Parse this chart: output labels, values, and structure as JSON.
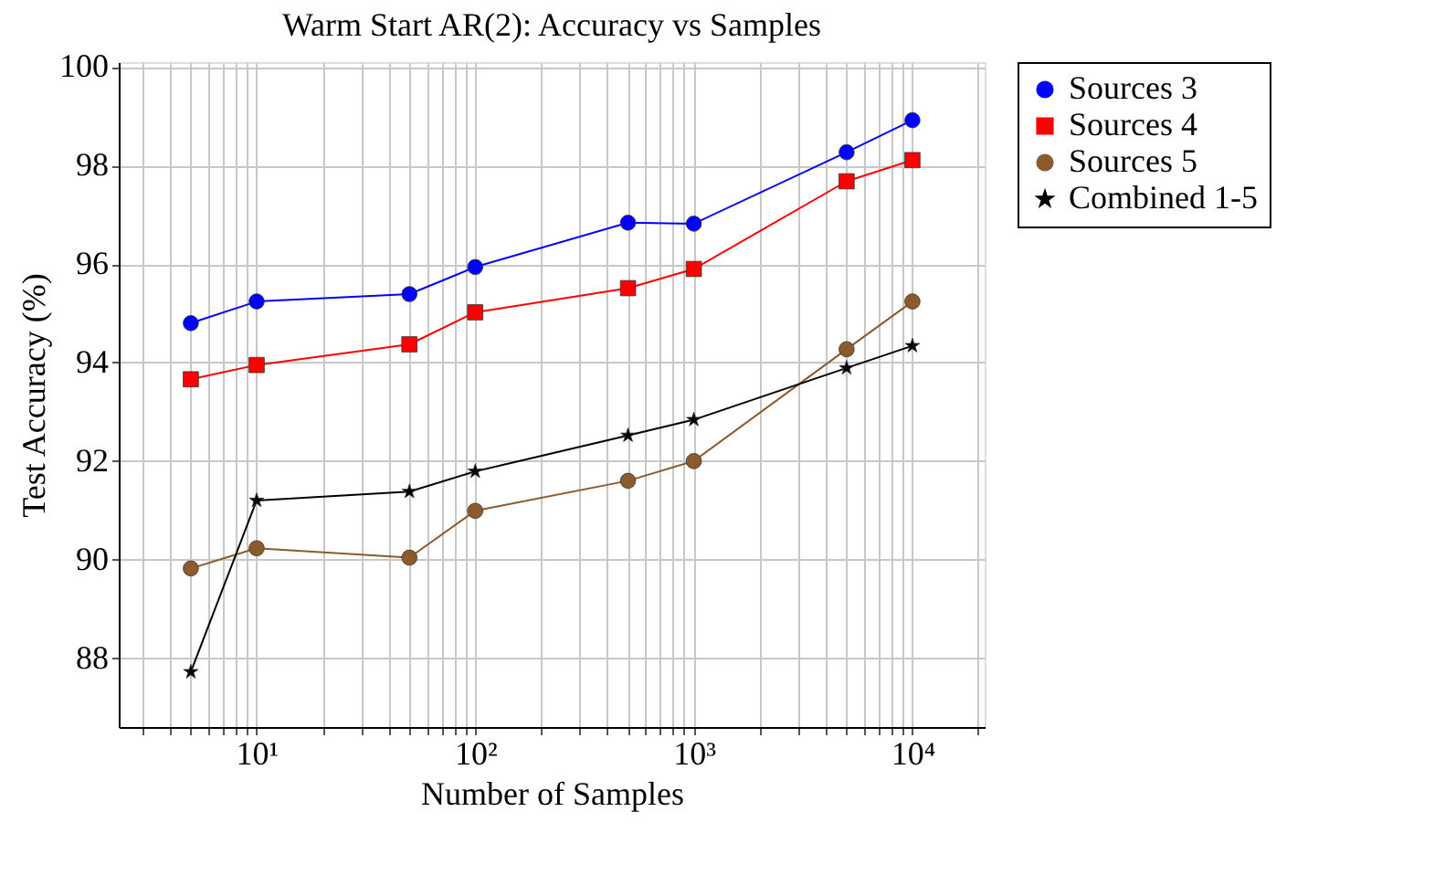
{
  "chart_data": {
    "type": "line",
    "title": "Warm Start AR(2): Accuracy vs Samples",
    "xlabel": "Number of Samples",
    "ylabel": "Test Accuracy (%)",
    "x": [
      5,
      10,
      50,
      100,
      500,
      1000,
      5000,
      10000
    ],
    "series": [
      {
        "name": "Sources 3",
        "color": "#0000ff",
        "marker": "circle",
        "values": [
          94.8,
          95.24,
          95.39,
          95.94,
          96.84,
          96.82,
          98.27,
          98.92
        ]
      },
      {
        "name": "Sources 4",
        "color": "#ff0000",
        "marker": "square",
        "values": [
          93.66,
          93.95,
          94.37,
          95.02,
          95.51,
          95.9,
          97.68,
          98.11
        ]
      },
      {
        "name": "Sources 5",
        "color": "#8c5a2b",
        "marker": "circle",
        "values": [
          89.82,
          90.23,
          90.04,
          90.99,
          91.6,
          92.0,
          94.27,
          95.24
        ]
      },
      {
        "name": "Combined 1-5",
        "color": "#000000",
        "marker": "star",
        "values": [
          87.72,
          91.2,
          91.38,
          91.79,
          92.52,
          92.84,
          93.89,
          94.34
        ]
      }
    ],
    "log": "x",
    "xlim": [
      2.34,
      21400
    ],
    "ylim": [
      86.6,
      100.1
    ],
    "xticks": [
      {
        "value": 3,
        "label": null
      },
      {
        "value": 4,
        "label": null
      },
      {
        "value": 5,
        "label": null
      },
      {
        "value": 6,
        "label": null
      },
      {
        "value": 7,
        "label": null
      },
      {
        "value": 8,
        "label": null
      },
      {
        "value": 9,
        "label": null
      },
      {
        "value": 10,
        "label": "10¹"
      },
      {
        "value": 20,
        "label": null
      },
      {
        "value": 30,
        "label": null
      },
      {
        "value": 40,
        "label": null
      },
      {
        "value": 50,
        "label": null
      },
      {
        "value": 60,
        "label": null
      },
      {
        "value": 70,
        "label": null
      },
      {
        "value": 80,
        "label": null
      },
      {
        "value": 90,
        "label": null
      },
      {
        "value": 100,
        "label": "10²"
      },
      {
        "value": 200,
        "label": null
      },
      {
        "value": 300,
        "label": null
      },
      {
        "value": 400,
        "label": null
      },
      {
        "value": 500,
        "label": null
      },
      {
        "value": 600,
        "label": null
      },
      {
        "value": 700,
        "label": null
      },
      {
        "value": 800,
        "label": null
      },
      {
        "value": 900,
        "label": null
      },
      {
        "value": 1000,
        "label": "10³"
      },
      {
        "value": 2000,
        "label": null
      },
      {
        "value": 3000,
        "label": null
      },
      {
        "value": 4000,
        "label": null
      },
      {
        "value": 5000,
        "label": null
      },
      {
        "value": 6000,
        "label": null
      },
      {
        "value": 7000,
        "label": null
      },
      {
        "value": 8000,
        "label": null
      },
      {
        "value": 9000,
        "label": null
      },
      {
        "value": 10000,
        "label": "10⁴"
      },
      {
        "value": 20000,
        "label": null
      }
    ],
    "yticks": [
      88,
      90,
      92,
      94,
      96,
      98,
      100
    ],
    "grid": true,
    "legend": "top right",
    "line_style": "solid"
  }
}
